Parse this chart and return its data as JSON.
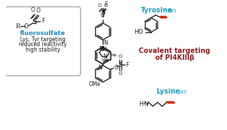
{
  "bg_color": "#ffffff",
  "black": "#1a1a1a",
  "blue": "#1a8abf",
  "red_dark": "#8b1a1a",
  "cyan": "#1a9fbf",
  "title_line1": "Covalent targeting",
  "title_line2": "of PI4KIIIβ",
  "tyrosine_label": "Tyrosine",
  "tyrosine_sub": "385",
  "lysine_label": "Lysine",
  "lysine_sub": "549",
  "fluorosulfate_label": "fluorosulfate",
  "box_text1": "Lys, Tyr targeting",
  "box_text2": "reduced reactivity",
  "box_text3": "high stability"
}
